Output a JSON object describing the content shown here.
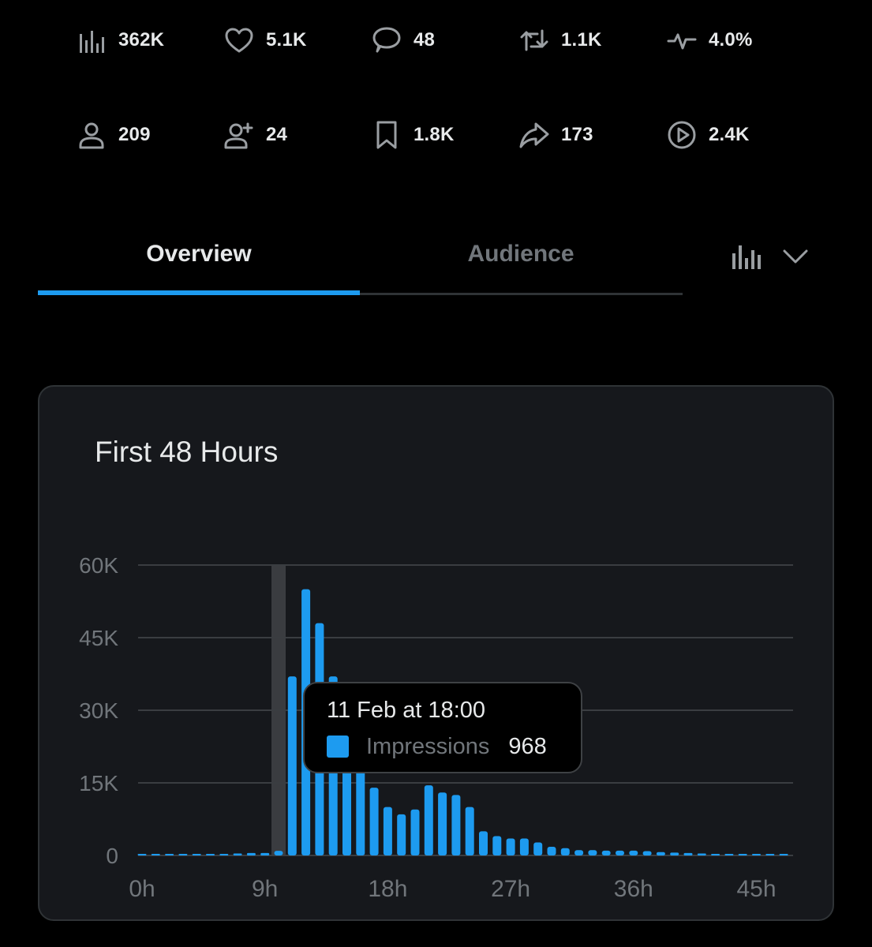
{
  "stats": [
    {
      "name": "views-icon",
      "value": "362K"
    },
    {
      "name": "likes-icon",
      "value": "5.1K"
    },
    {
      "name": "replies-icon",
      "value": "48"
    },
    {
      "name": "reposts-icon",
      "value": "1.1K"
    },
    {
      "name": "engagement-rate-icon",
      "value": "4.0%"
    },
    {
      "name": "profile-visits-icon",
      "value": "209"
    },
    {
      "name": "new-follows-icon",
      "value": "24"
    },
    {
      "name": "bookmarks-icon",
      "value": "1.8K"
    },
    {
      "name": "shares-icon",
      "value": "173"
    },
    {
      "name": "video-views-icon",
      "value": "2.4K"
    }
  ],
  "tabs": [
    {
      "label": "Overview",
      "active": true
    },
    {
      "label": "Audience",
      "active": false
    }
  ],
  "chart_toggle": {
    "icon": "bar-chart-icon",
    "dropdown_icon": "chevron-down-icon"
  },
  "colors": {
    "accent": "#1d9bf0",
    "card_bg": "#16181c",
    "muted": "#71767b",
    "text": "#e7e9ea"
  },
  "card": {
    "title": "First 48 Hours"
  },
  "tooltip": {
    "date": "11 Feb at 18:00",
    "series": "Impressions",
    "value": "968"
  },
  "chart_data": {
    "type": "bar",
    "title": "First 48 Hours",
    "x": [
      0,
      1,
      2,
      3,
      4,
      5,
      6,
      7,
      8,
      9,
      10,
      11,
      12,
      13,
      14,
      15,
      16,
      17,
      18,
      19,
      20,
      21,
      22,
      23,
      24,
      25,
      26,
      27,
      28,
      29,
      30,
      31,
      32,
      33,
      34,
      35,
      36,
      37,
      38,
      39,
      40,
      41,
      42,
      43,
      44,
      45,
      46,
      47
    ],
    "xticks": [
      "0h",
      "9h",
      "18h",
      "27h",
      "36h",
      "45h"
    ],
    "xtick_values": [
      0,
      9,
      18,
      27,
      36,
      45
    ],
    "yticks": [
      "0",
      "15K",
      "30K",
      "45K",
      "60K"
    ],
    "ytick_values": [
      0,
      15000,
      30000,
      45000,
      60000
    ],
    "ylim": [
      0,
      60000
    ],
    "grid": true,
    "series": [
      {
        "name": "Impressions",
        "values": [
          50,
          60,
          80,
          100,
          120,
          200,
          300,
          400,
          500,
          500,
          968,
          37000,
          55000,
          48000,
          37000,
          30000,
          21000,
          14000,
          10000,
          8500,
          9500,
          14500,
          13000,
          12500,
          10000,
          5000,
          4000,
          3500,
          3500,
          2700,
          1800,
          1500,
          1100,
          1100,
          1000,
          1000,
          1000,
          900,
          700,
          600,
          500,
          400,
          300,
          250,
          200,
          150,
          150,
          150
        ]
      }
    ],
    "highlight_index": 10
  }
}
